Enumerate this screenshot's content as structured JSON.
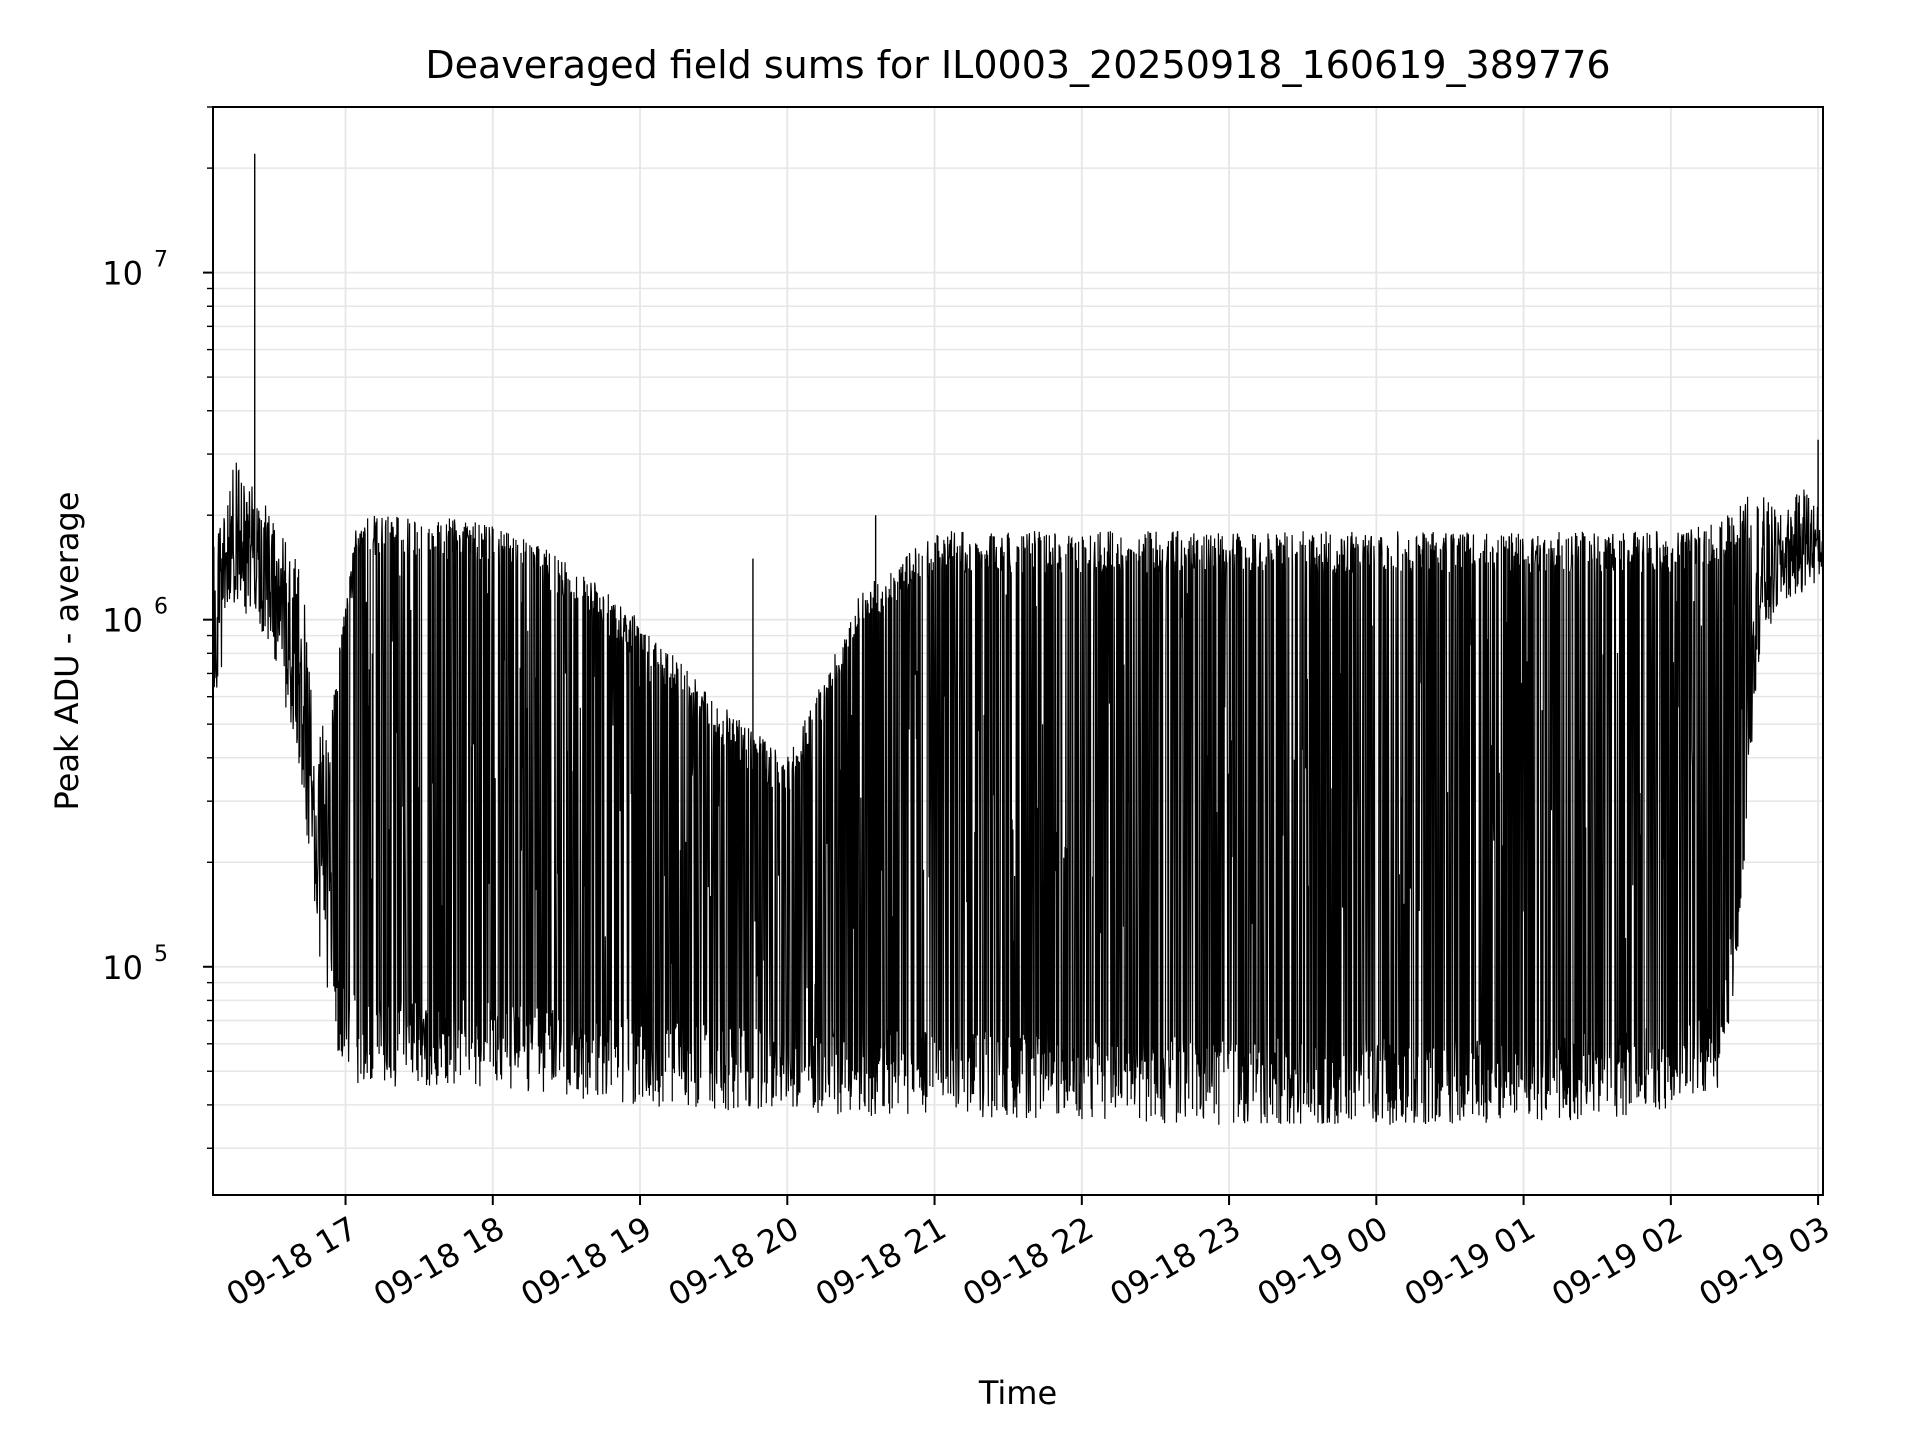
{
  "chart_data": {
    "type": "line",
    "title": "Deaveraged field sums for IL0003_20250918_160619_389776",
    "xlabel": "Time",
    "ylabel": "Peak ADU - average",
    "x_axis": {
      "kind": "datetime",
      "range": [
        "2025-09-18T16:06",
        "2025-09-19T03:02"
      ],
      "ticks": [
        "09-18 17",
        "09-18 18",
        "09-18 19",
        "09-18 20",
        "09-18 21",
        "09-18 22",
        "09-18 23",
        "09-19 00",
        "09-19 01",
        "09-19 02",
        "09-19 03"
      ],
      "tick_times": [
        "2025-09-18T17:00",
        "2025-09-18T18:00",
        "2025-09-18T19:00",
        "2025-09-18T20:00",
        "2025-09-18T21:00",
        "2025-09-18T22:00",
        "2025-09-18T23:00",
        "2025-09-19T00:00",
        "2025-09-19T01:00",
        "2025-09-19T02:00",
        "2025-09-19T03:00"
      ],
      "tick_label_rotation": 30
    },
    "y_axis": {
      "scale": "log",
      "range": [
        22000,
        30000000
      ],
      "ticks": [
        {
          "value": 100000,
          "base": "10",
          "exp": "5"
        },
        {
          "value": 1000000,
          "base": "10",
          "exp": "6"
        },
        {
          "value": 10000000,
          "base": "10",
          "exp": "7"
        }
      ]
    },
    "grid": true,
    "grid_color": "#e6e6e6",
    "line_color": "#000000",
    "series": [
      {
        "envelope": [
          {
            "t": "2025-09-18T16:06",
            "high": 1600000,
            "low": 550000
          },
          {
            "t": "2025-09-18T16:15",
            "high": 3000000,
            "low": 1100000
          },
          {
            "t": "2025-09-18T16:24",
            "high": 2400000,
            "low": 950000
          },
          {
            "t": "2025-09-18T16:33",
            "high": 1800000,
            "low": 700000
          },
          {
            "t": "2025-09-18T16:42",
            "high": 1600000,
            "low": 300000
          },
          {
            "t": "2025-09-18T16:48",
            "high": 500000,
            "low": 110000
          },
          {
            "t": "2025-09-18T16:55",
            "high": 620000,
            "low": 60000
          },
          {
            "t": "2025-09-18T17:05",
            "high": 2000000,
            "low": 45000
          },
          {
            "t": "2025-09-18T17:30",
            "high": 2000000,
            "low": 45000
          },
          {
            "t": "2025-09-18T18:00",
            "high": 1900000,
            "low": 45000
          },
          {
            "t": "2025-09-18T18:30",
            "high": 1500000,
            "low": 42000
          },
          {
            "t": "2025-09-18T19:00",
            "high": 1000000,
            "low": 40000
          },
          {
            "t": "2025-09-18T19:30",
            "high": 600000,
            "low": 38000
          },
          {
            "t": "2025-09-18T20:00",
            "high": 400000,
            "low": 38000
          },
          {
            "t": "2025-09-18T20:30",
            "high": 1200000,
            "low": 37000
          },
          {
            "t": "2025-09-18T21:00",
            "high": 1800000,
            "low": 37000
          },
          {
            "t": "2025-09-18T22:00",
            "high": 1800000,
            "low": 36000
          },
          {
            "t": "2025-09-18T23:00",
            "high": 1800000,
            "low": 35000
          },
          {
            "t": "2025-09-19T00:00",
            "high": 1800000,
            "low": 35000
          },
          {
            "t": "2025-09-19T01:00",
            "high": 1800000,
            "low": 35000
          },
          {
            "t": "2025-09-19T02:00",
            "high": 1800000,
            "low": 38000
          },
          {
            "t": "2025-09-19T02:20",
            "high": 1900000,
            "low": 45000
          },
          {
            "t": "2025-09-19T02:27",
            "high": 2200000,
            "low": 90000
          },
          {
            "t": "2025-09-19T02:35",
            "high": 2400000,
            "low": 700000
          },
          {
            "t": "2025-09-19T02:45",
            "high": 2000000,
            "low": 1100000
          },
          {
            "t": "2025-09-19T02:55",
            "high": 2500000,
            "low": 1200000
          },
          {
            "t": "2025-09-19T03:02",
            "high": 2000000,
            "low": 1300000
          }
        ],
        "peaks": [
          {
            "t": "2025-09-18T16:23",
            "value": 22000000
          },
          {
            "t": "2025-09-19T03:00",
            "value": 3300000
          },
          {
            "t": "2025-09-18T20:36",
            "value": 2000000
          },
          {
            "t": "2025-09-18T19:46",
            "value": 1500000
          }
        ]
      }
    ]
  }
}
